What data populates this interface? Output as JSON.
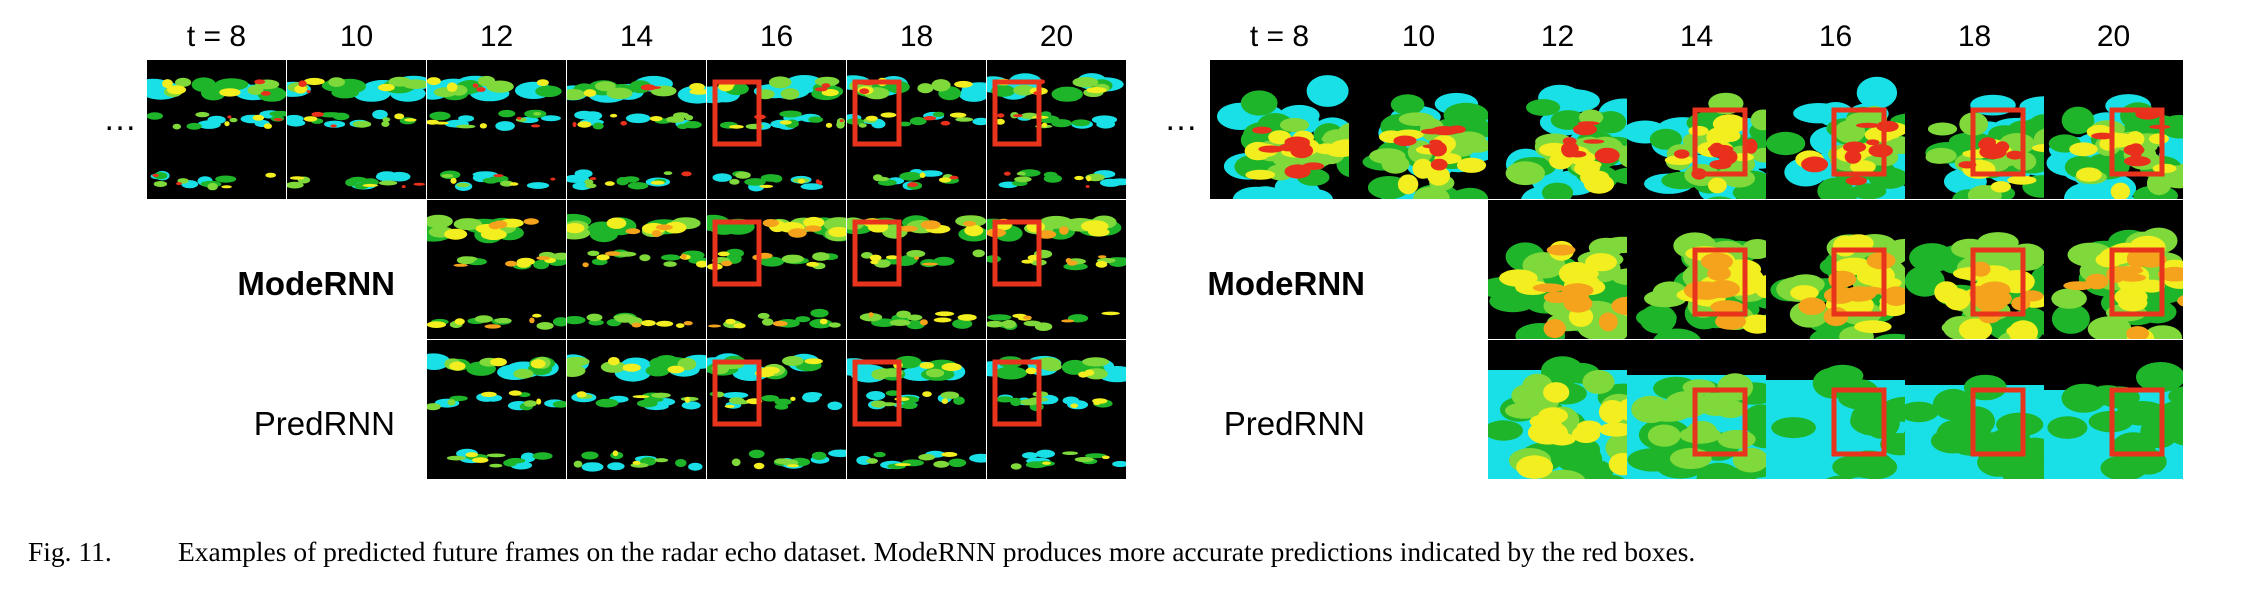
{
  "figure": {
    "panels": [
      {
        "id": "left",
        "time_labels": [
          "t = 8",
          "10",
          "12",
          "14",
          "16",
          "18",
          "20"
        ],
        "ellipsis": "…",
        "rows": [
          {
            "label": "",
            "bold": false,
            "style": "gt",
            "frames": 7
          },
          {
            "label": "ModeRNN",
            "bold": true,
            "style": "mode",
            "frames": 5
          },
          {
            "label": "PredRNN",
            "bold": false,
            "style": "pred",
            "frames": 5
          }
        ]
      },
      {
        "id": "right",
        "time_labels": [
          "t = 8",
          "10",
          "12",
          "14",
          "16",
          "18",
          "20"
        ],
        "ellipsis": "…",
        "rows": [
          {
            "label": "",
            "bold": false,
            "style": "gt",
            "frames": 7
          },
          {
            "label": "ModeRNN",
            "bold": true,
            "style": "mode",
            "frames": 5
          },
          {
            "label": "PredRNN",
            "bold": false,
            "style": "pred",
            "frames": 5
          }
        ]
      }
    ],
    "caption_number": "Fig. 11.",
    "caption_text": "Examples of predicted future frames on the radar echo dataset. ModeRNN produces more accurate predictions indicated by the red boxes.",
    "colors": {
      "background": "#000000",
      "red_box": "#e8341c",
      "echo_cyan": "#19e0e6",
      "echo_green": "#1fb52a",
      "echo_lightgreen": "#7fd93a",
      "echo_yellow": "#f2ee1f",
      "echo_orange": "#f5a21c",
      "echo_red": "#e8301c"
    }
  }
}
